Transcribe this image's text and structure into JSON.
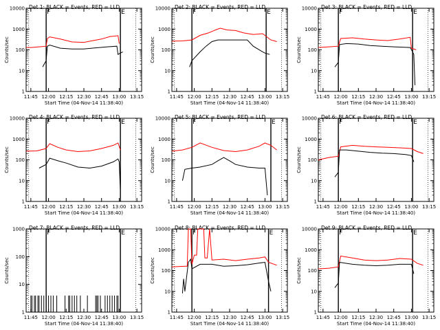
{
  "figure": {
    "ylabel": "Counts/sec",
    "xlabel": "Start Time (04-Nov-14 11:38:40)",
    "xticks": [
      "11:45",
      "12:00",
      "12:15",
      "12:30",
      "12:45",
      "13:00",
      "13:15"
    ]
  },
  "chart_data": [
    {
      "type": "line",
      "title": "Det 1: BLACK = Events, RED = LLD",
      "xlabel": "Start Time (04-Nov-14 11:38:40)",
      "ylabel": "Counts/sec",
      "y_scale": "log",
      "ylim": [
        1,
        10000
      ],
      "x_ticks": [
        "11:45",
        "12:00",
        "12:15",
        "12:30",
        "12:45",
        "13:00",
        "13:15"
      ],
      "markers": [
        {
          "time": "11:58",
          "label": "F"
        },
        {
          "time": "13:01",
          "label": "E"
        }
      ],
      "series": [
        {
          "color": "#ff0000",
          "x": [
            "11:41",
            "11:45",
            "11:52",
            "11:58",
            "11:59",
            "12:01",
            "12:10",
            "12:20",
            "12:30",
            "12:38",
            "12:45",
            "12:52",
            "12:59",
            "13:00"
          ],
          "values": [
            130,
            130,
            140,
            150,
            350,
            420,
            330,
            240,
            230,
            280,
            330,
            430,
            480,
            200
          ]
        },
        {
          "color": "#000000",
          "x": [
            "11:55",
            "11:58",
            "11:59",
            "12:01",
            "12:10",
            "12:20",
            "12:30",
            "12:40",
            "12:50",
            "12:58",
            "12:59",
            "13:01",
            "13:03"
          ],
          "values": [
            15,
            30,
            150,
            170,
            120,
            110,
            110,
            125,
            140,
            150,
            60,
            70,
            80
          ]
        }
      ]
    },
    {
      "type": "line",
      "title": "Det 2: BLACK = Events, RED = LLD",
      "xlabel": "Start Time (04-Nov-14 11:38:40)",
      "ylabel": "Counts/sec",
      "y_scale": "log",
      "ylim": [
        1,
        10000
      ],
      "x_ticks": [
        "11:45",
        "12:00",
        "12:15",
        "12:30",
        "12:45",
        "13:00",
        "13:15"
      ],
      "markers": [
        {
          "time": "11:58",
          "label": "F"
        },
        {
          "time": "13:01",
          "label": "E"
        }
      ],
      "series": [
        {
          "color": "#ff0000",
          "x": [
            "11:41",
            "11:50",
            "11:58",
            "12:05",
            "12:12",
            "12:18",
            "12:22",
            "12:28",
            "12:35",
            "12:42",
            "12:50",
            "12:58",
            "13:05",
            "13:10"
          ],
          "values": [
            260,
            270,
            300,
            500,
            650,
            900,
            1100,
            900,
            850,
            650,
            550,
            600,
            300,
            250
          ]
        },
        {
          "color": "#000000",
          "x": [
            "11:56",
            "11:58",
            "12:05",
            "12:10",
            "12:15",
            "12:20",
            "12:30",
            "12:40",
            "12:45",
            "12:50",
            "12:58",
            "13:00",
            "13:04"
          ],
          "values": [
            15,
            30,
            80,
            150,
            250,
            300,
            300,
            300,
            300,
            150,
            80,
            70,
            60
          ]
        }
      ]
    },
    {
      "type": "line",
      "title": "Det 3: BLACK = Events, RED = LLD",
      "xlabel": "Start Time (04-Nov-14 11:38:40)",
      "ylabel": "Counts/sec",
      "y_scale": "log",
      "ylim": [
        1,
        10000
      ],
      "x_ticks": [
        "11:45",
        "12:00",
        "12:15",
        "12:30",
        "12:45",
        "13:00",
        "13:15"
      ],
      "markers": [
        {
          "time": "11:58",
          "label": "F"
        },
        {
          "time": "13:01",
          "label": "E"
        }
      ],
      "series": [
        {
          "color": "#ff0000",
          "x": [
            "11:41",
            "11:50",
            "11:58",
            "12:00",
            "12:10",
            "12:20",
            "12:30",
            "12:40",
            "12:50",
            "12:59",
            "13:00",
            "13:04"
          ],
          "values": [
            130,
            140,
            150,
            350,
            380,
            330,
            300,
            280,
            330,
            400,
            120,
            100
          ]
        },
        {
          "color": "#000000",
          "x": [
            "11:55",
            "11:58",
            "11:59",
            "12:05",
            "12:15",
            "12:25",
            "12:35",
            "12:45",
            "12:59",
            "13:01",
            "13:02",
            "13:03"
          ],
          "values": [
            15,
            25,
            180,
            200,
            190,
            160,
            150,
            140,
            130,
            80,
            60,
            2
          ]
        }
      ]
    },
    {
      "type": "line",
      "title": "Det 4: BLACK = Events, RED = LLD",
      "xlabel": "Start Time (04-Nov-14 11:38:40)",
      "ylabel": "Counts/sec",
      "y_scale": "log",
      "ylim": [
        1,
        10000
      ],
      "x_ticks": [
        "11:45",
        "12:00",
        "12:15",
        "12:30",
        "12:45",
        "13:00",
        "13:15"
      ],
      "markers": [
        {
          "time": "11:58",
          "label": "F"
        },
        {
          "time": "13:01",
          "label": "E"
        }
      ],
      "series": [
        {
          "color": "#ff0000",
          "x": [
            "11:41",
            "11:50",
            "11:58",
            "12:01",
            "12:08",
            "12:15",
            "12:25",
            "12:35",
            "12:45",
            "12:55",
            "12:59",
            "13:01"
          ],
          "values": [
            260,
            270,
            350,
            600,
            400,
            300,
            250,
            270,
            350,
            500,
            650,
            300
          ]
        },
        {
          "color": "#000000",
          "x": [
            "11:52",
            "11:58",
            "12:01",
            "12:08",
            "12:15",
            "12:25",
            "12:35",
            "12:45",
            "12:55",
            "12:59",
            "13:00",
            "13:01"
          ],
          "values": [
            40,
            60,
            120,
            90,
            70,
            45,
            40,
            50,
            80,
            110,
            80,
            3
          ]
        }
      ]
    },
    {
      "type": "line",
      "title": "Det 5: BLACK = Events, RED = LLD",
      "xlabel": "Start Time (04-Nov-14 11:38:40)",
      "ylabel": "Counts/sec",
      "y_scale": "log",
      "ylim": [
        1,
        10000
      ],
      "x_ticks": [
        "11:45",
        "12:00",
        "12:15",
        "12:30",
        "12:45",
        "13:00",
        "13:15"
      ],
      "markers": [
        {
          "time": "11:58",
          "label": "F"
        },
        {
          "time": "13:05",
          "label": "E"
        }
      ],
      "series": [
        {
          "color": "#ff0000",
          "x": [
            "11:41",
            "11:50",
            "11:58",
            "12:05",
            "12:15",
            "12:25",
            "12:35",
            "12:45",
            "12:55",
            "13:00",
            "13:05",
            "13:10"
          ],
          "values": [
            260,
            300,
            400,
            650,
            400,
            280,
            250,
            300,
            450,
            650,
            500,
            300
          ]
        },
        {
          "color": "#000000",
          "x": [
            "11:50",
            "11:52",
            "11:58",
            "12:05",
            "12:15",
            "12:20",
            "12:25",
            "12:30",
            "12:35",
            "12:45",
            "12:55",
            "13:00",
            "13:02"
          ],
          "values": [
            10,
            35,
            40,
            45,
            60,
            90,
            130,
            90,
            60,
            45,
            40,
            40,
            2
          ]
        }
      ]
    },
    {
      "type": "line",
      "title": "Det 6: BLACK = Events, RED = LLD",
      "xlabel": "Start Time (04-Nov-14 11:38:40)",
      "ylabel": "Counts/sec",
      "y_scale": "log",
      "ylim": [
        1,
        10000
      ],
      "x_ticks": [
        "11:45",
        "12:00",
        "12:15",
        "12:30",
        "12:45",
        "13:00",
        "13:15"
      ],
      "markers": [
        {
          "time": "11:58",
          "label": "F"
        },
        {
          "time": "13:01",
          "label": "E"
        }
      ],
      "series": [
        {
          "color": "#ff0000",
          "x": [
            "11:41",
            "11:50",
            "11:58",
            "12:00",
            "12:10",
            "12:20",
            "12:30",
            "12:40",
            "12:50",
            "13:00",
            "13:05",
            "13:10"
          ],
          "values": [
            100,
            130,
            150,
            420,
            500,
            450,
            420,
            400,
            380,
            350,
            250,
            200
          ]
        },
        {
          "color": "#000000",
          "x": [
            "11:55",
            "11:58",
            "11:59",
            "12:05",
            "12:15",
            "12:25",
            "12:35",
            "12:45",
            "12:55",
            "13:00",
            "13:02"
          ],
          "values": [
            15,
            25,
            300,
            300,
            260,
            230,
            210,
            200,
            180,
            160,
            80
          ]
        }
      ]
    },
    {
      "type": "line",
      "title": "Det 7: BLACK = Events, RED = LLD",
      "xlabel": "Start Time (04-Nov-14 11:38:40)",
      "ylabel": "Counts/sec",
      "y_scale": "log",
      "ylim": [
        1,
        1000
      ],
      "x_ticks": [
        "11:45",
        "12:00",
        "12:15",
        "12:30",
        "12:45",
        "13:00",
        "13:15"
      ],
      "markers": [
        {
          "time": "11:58",
          "label": "F"
        },
        {
          "time": "13:01",
          "label": "E"
        }
      ],
      "series": [
        {
          "color": "#000000",
          "style": "spikes",
          "x": [
            "11:45",
            "11:46",
            "11:48",
            "11:49",
            "11:51",
            "11:52",
            "11:54",
            "11:56",
            "11:58",
            "12:00",
            "12:02",
            "12:04",
            "12:07",
            "12:14",
            "12:17",
            "12:18",
            "12:20",
            "12:22",
            "12:24",
            "12:27",
            "12:33",
            "12:40",
            "12:41",
            "12:42",
            "12:44",
            "12:48",
            "12:50",
            "12:52",
            "12:54",
            "12:56",
            "12:58",
            "12:59"
          ],
          "values": [
            2,
            2,
            2,
            2,
            2,
            2,
            2,
            2,
            2,
            2,
            2,
            2,
            2,
            2,
            2,
            2,
            2,
            2,
            2,
            2,
            2,
            2,
            2,
            2,
            2,
            2,
            2,
            2,
            2,
            2,
            2,
            2
          ]
        }
      ]
    },
    {
      "type": "line",
      "title": "Det 8: BLACK = Events, RED = LLD",
      "xlabel": "Start Time (04-Nov-14 11:38:40)",
      "ylabel": "Counts/sec",
      "y_scale": "log",
      "ylim": [
        1,
        10000
      ],
      "x_ticks": [
        "11:45",
        "12:00",
        "12:15",
        "12:30",
        "12:45",
        "13:00",
        "13:15"
      ],
      "markers": [
        {
          "time": "11:58",
          "label": "F"
        },
        {
          "time": "13:03",
          "label": "E"
        }
      ],
      "series": [
        {
          "color": "#ff0000",
          "x": [
            "11:41",
            "11:52",
            "11:54",
            "11:55",
            "11:57",
            "11:58",
            "12:00",
            "12:02",
            "12:03",
            "12:08",
            "12:09",
            "12:11",
            "12:13",
            "12:15",
            "12:25",
            "12:35",
            "12:45",
            "12:55",
            "13:00",
            "13:03",
            "13:10"
          ],
          "values": [
            150,
            160,
            160,
            12000,
            12000,
            200,
            550,
            550,
            12000,
            12000,
            400,
            400,
            12000,
            320,
            350,
            300,
            350,
            400,
            450,
            250,
            180
          ]
        },
        {
          "color": "#000000",
          "x": [
            "11:50",
            "11:51",
            "11:52",
            "11:55",
            "11:57",
            "11:58",
            "12:05",
            "12:15",
            "12:25",
            "12:35",
            "12:45",
            "12:55",
            "13:00",
            "13:03",
            "13:05"
          ],
          "values": [
            8,
            40,
            10,
            250,
            350,
            120,
            200,
            200,
            160,
            170,
            190,
            230,
            250,
            30,
            10
          ]
        }
      ]
    },
    {
      "type": "line",
      "title": "Det 9: BLACK = Events, RED = LLD",
      "xlabel": "Start Time (04-Nov-14 11:38:40)",
      "ylabel": "Counts/sec",
      "y_scale": "log",
      "ylim": [
        1,
        10000
      ],
      "x_ticks": [
        "11:45",
        "12:00",
        "12:15",
        "12:30",
        "12:45",
        "13:00",
        "13:15"
      ],
      "markers": [
        {
          "time": "11:58",
          "label": "F"
        },
        {
          "time": "13:01",
          "label": "E"
        }
      ],
      "series": [
        {
          "color": "#ff0000",
          "x": [
            "11:41",
            "11:50",
            "11:58",
            "12:00",
            "12:10",
            "12:20",
            "12:30",
            "12:40",
            "12:50",
            "13:00",
            "13:05",
            "13:10"
          ],
          "values": [
            120,
            130,
            150,
            500,
            400,
            320,
            300,
            320,
            380,
            350,
            220,
            180
          ]
        },
        {
          "color": "#000000",
          "x": [
            "11:55",
            "11:58",
            "11:59",
            "12:10",
            "12:20",
            "12:30",
            "12:40",
            "12:50",
            "13:00",
            "13:02"
          ],
          "values": [
            15,
            25,
            250,
            200,
            180,
            170,
            180,
            200,
            200,
            70
          ]
        }
      ]
    }
  ]
}
